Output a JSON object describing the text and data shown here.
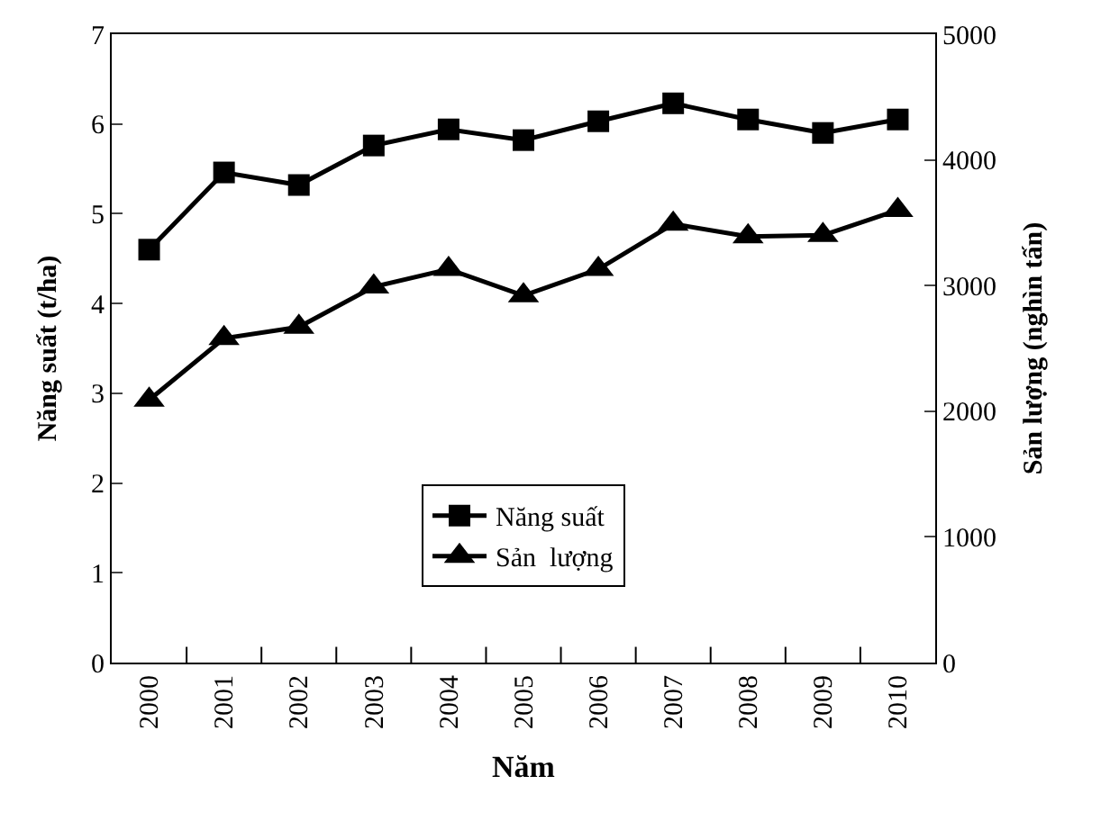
{
  "chart_data": {
    "type": "line",
    "xlabel": "Năm",
    "ylabel": "Năng suất (t/ha)",
    "y2label": "Sản lượng (nghìn tấn)",
    "categories": [
      "2000",
      "2001",
      "2002",
      "2003",
      "2004",
      "2005",
      "2006",
      "2007",
      "2008",
      "2009",
      "2010"
    ],
    "series": [
      {
        "name": "Năng suất",
        "color": "#000000",
        "marker": "square",
        "values": [
          4.6,
          5.46,
          5.32,
          5.76,
          5.94,
          5.82,
          6.03,
          6.23,
          6.05,
          5.9,
          6.05
        ]
      },
      {
        "name": "Sản  lượng",
        "color": "#000000",
        "marker": "triangle",
        "axis": "y2",
        "values": [
          2090,
          2580,
          2670,
          2990,
          3130,
          2920,
          3130,
          3490,
          3390,
          3400,
          3600
        ]
      }
    ],
    "ylim": [
      0,
      7
    ],
    "yticks": [
      0,
      1,
      2,
      3,
      4,
      5,
      6,
      7
    ],
    "y2lim": [
      0,
      5000
    ],
    "y2ticks": [
      0,
      1000,
      2000,
      3000,
      4000,
      5000
    ],
    "legend": "bottom",
    "line_style": "solid"
  }
}
